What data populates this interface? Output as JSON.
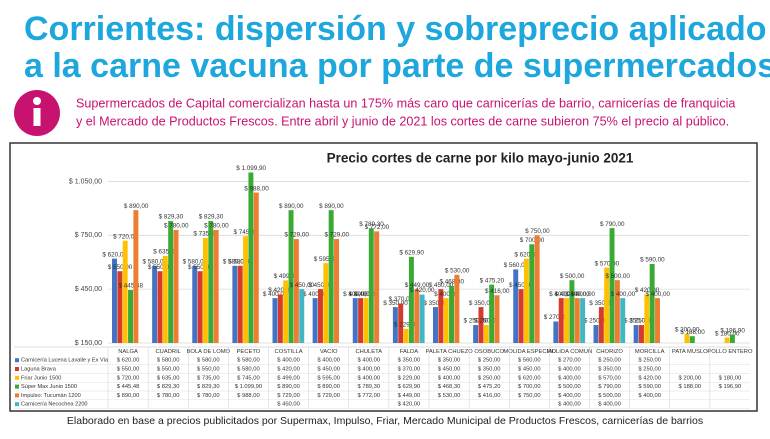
{
  "header": {
    "title": [
      "Corrientes: dispersión y sobreprecio aplicado",
      "a la carne vacuna por parte de supermercados"
    ],
    "intro": [
      "Supermercados de Capital comercializan hasta un 175% más caro que carnicerías de barrio, carnicerías de franquicia",
      "y el Mercado de Productos Frescos. Entre abril y junio de 2021 los cortes de carne subieron 75% el precio al público."
    ]
  },
  "chart_data": {
    "type": "bar",
    "title": "Precio cortes de carne por kilo mayo-junio 2021",
    "categories": [
      "NALGA",
      "CUADRIL",
      "BOLA DE LOMO",
      "PECETO",
      "COSTILLA",
      "VACIO",
      "CHULETA",
      "FALDA",
      "PALETA CHUEZO",
      "OSOBUCO",
      "MOLIDA ESPECIAL",
      "MOLIDA COMUN",
      "CHORIZO",
      "MORCILLA",
      "PATA MUSLO",
      "POLLO ENTERO"
    ],
    "ylim": [
      150,
      1125
    ],
    "yticks": [
      {
        "value": 150,
        "label": "$ 150,00"
      },
      {
        "value": 450,
        "label": "$ 450,00"
      },
      {
        "value": 750,
        "label": "$ 750,00"
      },
      {
        "value": 1050,
        "label": "$ 1.050,00"
      }
    ],
    "grid": true,
    "series": [
      {
        "name": "Carnicería Lucena Lavalle y Ex Via",
        "color": "#4472c4",
        "values": [
          620,
          580,
          580,
          580,
          400,
          400,
          400,
          350,
          350,
          250,
          560,
          270,
          250,
          250,
          null,
          null
        ],
        "value_labels": [
          "$ 620,00",
          "$ 580,00",
          "$ 580,00",
          "$ 580,00",
          "$ 400,00",
          "$ 400,00",
          "$ 400,00",
          "$ 350,00",
          "$ 350,00",
          "$ 250,00",
          "$ 560,00",
          "$ 270,00",
          "$ 250,00",
          "$ 250,00",
          null,
          null
        ]
      },
      {
        "name": "Laguna Brava",
        "color": "#d63a2a",
        "values": [
          550,
          550,
          550,
          580,
          420,
          450,
          400,
          370,
          450,
          350,
          450,
          400,
          350,
          250,
          null,
          null
        ],
        "value_labels": [
          "$ 550,00",
          "$ 550,00",
          "$ 550,00",
          "$ 580,00",
          "$ 420,00",
          "$ 450,00",
          "$ 400,00",
          "$ 370,00",
          "$ 450,00",
          "$ 350,00",
          "$ 450,00",
          "$ 400,00",
          "$ 350,00",
          "$ 250,00",
          null,
          null
        ]
      },
      {
        "name": "Friar Junio 1500",
        "color": "#ffc000",
        "values": [
          720,
          635,
          735,
          745,
          499,
          595,
          400,
          229,
          400,
          250,
          620,
          400,
          570,
          420,
          200,
          180
        ],
        "value_labels": [
          "$ 720,00",
          "$ 635,00",
          "$ 735,00",
          "$ 745,00",
          "$ 499,00",
          "$ 595,00",
          "$ 400,00",
          "$ 229,00",
          "$ 400,00",
          "$ 250,00",
          "$ 620,00",
          "$ 400,00",
          "$ 570,00",
          "$ 420,00",
          "$ 200,00",
          "$ 180,00"
        ]
      },
      {
        "name": "Súper Max Junio 1500",
        "color": "#3aaa35",
        "values": [
          445.48,
          829.3,
          829.3,
          1099.9,
          890,
          890,
          789.3,
          629.9,
          468.3,
          475.2,
          700,
          500,
          790,
          590,
          188,
          196.9
        ],
        "value_labels": [
          "$ 445,48",
          "$ 829,30",
          "$ 829,30",
          "$ 1.099,90",
          "$ 890,00",
          "$ 890,00",
          "$ 789,30",
          "$ 629,90",
          "$ 468,30",
          "$ 475,20",
          "$ 700,00",
          "$ 500,00",
          "$ 790,00",
          "$ 590,00",
          "$ 188,00",
          "$ 196,90"
        ]
      },
      {
        "name": "Impulso: Tucumán 1200",
        "color": "#ed7d31",
        "values": [
          890,
          780,
          780,
          988,
          729,
          729,
          772,
          449,
          530,
          416,
          750,
          400,
          500,
          400,
          null,
          null
        ],
        "value_labels": [
          "$ 890,00",
          "$ 780,00",
          "$ 780,00",
          "$ 988,00",
          "$ 729,00",
          "$ 729,00",
          "$ 772,00",
          "$ 449,00",
          "$ 530,00",
          "$ 416,00",
          "$ 750,00",
          "$ 400,00",
          "$ 500,00",
          "$ 400,00",
          null,
          null
        ]
      },
      {
        "name": "Carnicería Necochea 2200",
        "color": "#41b6c4",
        "values": [
          null,
          null,
          null,
          null,
          450,
          null,
          null,
          420,
          null,
          null,
          null,
          400,
          400,
          null,
          null,
          null
        ],
        "value_labels": [
          null,
          null,
          null,
          null,
          "$ 450,00",
          null,
          null,
          "$ 420,00",
          null,
          null,
          null,
          "$ 400,00",
          "$ 400,00",
          null,
          null,
          null
        ]
      }
    ]
  },
  "footer": "Elaborado en base a precios publicitados por Supermax, Impulso, Friar, Mercado Municipal de Productos Frescos, carnicerías de barrios"
}
